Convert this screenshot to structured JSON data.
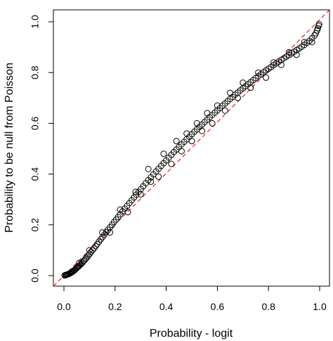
{
  "chart_data": {
    "type": "scatter",
    "title": "",
    "xlabel": "Probability - logit",
    "ylabel": "Probability to be null from Poisson",
    "xlim": [
      0,
      1
    ],
    "ylim": [
      0,
      1
    ],
    "xticks": [
      0.0,
      0.2,
      0.4,
      0.6,
      0.8,
      1.0
    ],
    "yticks": [
      0.0,
      0.2,
      0.4,
      0.6,
      0.8,
      1.0
    ],
    "xtick_labels": [
      "0.0",
      "0.2",
      "0.4",
      "0.6",
      "0.8",
      "1.0"
    ],
    "ytick_labels": [
      "0.0",
      "0.2",
      "0.4",
      "0.6",
      "0.8",
      "1.0"
    ],
    "grid": false,
    "legend": "none",
    "reference_line": {
      "from": [
        0,
        0
      ],
      "to": [
        1,
        1
      ],
      "color": "#e02020",
      "style": "dashed"
    },
    "marker_color": "#000000",
    "series": [
      {
        "points": [
          [
            0.003,
            0.001
          ],
          [
            0.006,
            0.002
          ],
          [
            0.009,
            0.003
          ],
          [
            0.012,
            0.004
          ],
          [
            0.015,
            0.005
          ],
          [
            0.018,
            0.006
          ],
          [
            0.021,
            0.008
          ],
          [
            0.024,
            0.009
          ],
          [
            0.027,
            0.011
          ],
          [
            0.03,
            0.013
          ],
          [
            0.033,
            0.015
          ],
          [
            0.036,
            0.017
          ],
          [
            0.039,
            0.02
          ],
          [
            0.042,
            0.022
          ],
          [
            0.045,
            0.025
          ],
          [
            0.048,
            0.028
          ],
          [
            0.051,
            0.031
          ],
          [
            0.054,
            0.034
          ],
          [
            0.057,
            0.036
          ],
          [
            0.06,
            0.039
          ],
          [
            0.064,
            0.043
          ],
          [
            0.068,
            0.047
          ],
          [
            0.072,
            0.051
          ],
          [
            0.076,
            0.056
          ],
          [
            0.08,
            0.06
          ],
          [
            0.085,
            0.066
          ],
          [
            0.09,
            0.072
          ],
          [
            0.095,
            0.079
          ],
          [
            0.1,
            0.085
          ],
          [
            0.106,
            0.093
          ],
          [
            0.112,
            0.101
          ],
          [
            0.118,
            0.108
          ],
          [
            0.124,
            0.116
          ],
          [
            0.13,
            0.124
          ],
          [
            0.137,
            0.134
          ],
          [
            0.144,
            0.143
          ],
          [
            0.151,
            0.152
          ],
          [
            0.158,
            0.161
          ],
          [
            0.165,
            0.171
          ],
          [
            0.172,
            0.18
          ],
          [
            0.18,
            0.19
          ],
          [
            0.188,
            0.2
          ],
          [
            0.196,
            0.211
          ],
          [
            0.204,
            0.221
          ],
          [
            0.212,
            0.231
          ],
          [
            0.22,
            0.241
          ],
          [
            0.229,
            0.253
          ],
          [
            0.238,
            0.264
          ],
          [
            0.247,
            0.275
          ],
          [
            0.256,
            0.286
          ],
          [
            0.265,
            0.297
          ],
          [
            0.274,
            0.308
          ],
          [
            0.283,
            0.319
          ],
          [
            0.292,
            0.33
          ],
          [
            0.301,
            0.341
          ],
          [
            0.31,
            0.352
          ],
          [
            0.32,
            0.364
          ],
          [
            0.33,
            0.376
          ],
          [
            0.34,
            0.387
          ],
          [
            0.35,
            0.399
          ],
          [
            0.36,
            0.41
          ],
          [
            0.37,
            0.421
          ],
          [
            0.38,
            0.432
          ],
          [
            0.39,
            0.443
          ],
          [
            0.4,
            0.454
          ],
          [
            0.41,
            0.465
          ],
          [
            0.42,
            0.476
          ],
          [
            0.43,
            0.487
          ],
          [
            0.44,
            0.497
          ],
          [
            0.45,
            0.507
          ],
          [
            0.46,
            0.517
          ],
          [
            0.47,
            0.527
          ],
          [
            0.48,
            0.537
          ],
          [
            0.49,
            0.547
          ],
          [
            0.5,
            0.557
          ],
          [
            0.51,
            0.567
          ],
          [
            0.52,
            0.576
          ],
          [
            0.53,
            0.586
          ],
          [
            0.54,
            0.595
          ],
          [
            0.55,
            0.605
          ],
          [
            0.56,
            0.614
          ],
          [
            0.57,
            0.624
          ],
          [
            0.58,
            0.633
          ],
          [
            0.59,
            0.642
          ],
          [
            0.6,
            0.651
          ],
          [
            0.61,
            0.66
          ],
          [
            0.62,
            0.669
          ],
          [
            0.63,
            0.678
          ],
          [
            0.64,
            0.687
          ],
          [
            0.65,
            0.696
          ],
          [
            0.66,
            0.704
          ],
          [
            0.67,
            0.713
          ],
          [
            0.68,
            0.721
          ],
          [
            0.69,
            0.73
          ],
          [
            0.7,
            0.738
          ],
          [
            0.71,
            0.746
          ],
          [
            0.72,
            0.754
          ],
          [
            0.73,
            0.762
          ],
          [
            0.74,
            0.77
          ],
          [
            0.75,
            0.778
          ],
          [
            0.76,
            0.786
          ],
          [
            0.77,
            0.793
          ],
          [
            0.78,
            0.801
          ],
          [
            0.79,
            0.808
          ],
          [
            0.8,
            0.815
          ],
          [
            0.81,
            0.822
          ],
          [
            0.82,
            0.829
          ],
          [
            0.83,
            0.836
          ],
          [
            0.84,
            0.843
          ],
          [
            0.85,
            0.85
          ],
          [
            0.86,
            0.856
          ],
          [
            0.87,
            0.863
          ],
          [
            0.88,
            0.869
          ],
          [
            0.89,
            0.876
          ],
          [
            0.9,
            0.882
          ],
          [
            0.91,
            0.889
          ],
          [
            0.92,
            0.895
          ],
          [
            0.93,
            0.902
          ],
          [
            0.94,
            0.909
          ],
          [
            0.95,
            0.917
          ],
          [
            0.96,
            0.925
          ],
          [
            0.97,
            0.935
          ],
          [
            0.98,
            0.946
          ],
          [
            0.985,
            0.955
          ],
          [
            0.99,
            0.966
          ],
          [
            0.993,
            0.975
          ],
          [
            0.996,
            0.984
          ],
          [
            0.998,
            0.99
          ],
          [
            0.15,
            0.17
          ],
          [
            0.18,
            0.17
          ],
          [
            0.22,
            0.26
          ],
          [
            0.25,
            0.25
          ],
          [
            0.28,
            0.33
          ],
          [
            0.3,
            0.32
          ],
          [
            0.33,
            0.42
          ],
          [
            0.34,
            0.37
          ],
          [
            0.37,
            0.39
          ],
          [
            0.39,
            0.48
          ],
          [
            0.42,
            0.44
          ],
          [
            0.44,
            0.53
          ],
          [
            0.46,
            0.49
          ],
          [
            0.48,
            0.56
          ],
          [
            0.5,
            0.53
          ],
          [
            0.52,
            0.6
          ],
          [
            0.54,
            0.57
          ],
          [
            0.56,
            0.64
          ],
          [
            0.58,
            0.6
          ],
          [
            0.6,
            0.67
          ],
          [
            0.63,
            0.65
          ],
          [
            0.65,
            0.72
          ],
          [
            0.68,
            0.7
          ],
          [
            0.7,
            0.76
          ],
          [
            0.73,
            0.74
          ],
          [
            0.76,
            0.8
          ],
          [
            0.79,
            0.78
          ],
          [
            0.82,
            0.84
          ],
          [
            0.85,
            0.83
          ],
          [
            0.88,
            0.88
          ],
          [
            0.91,
            0.87
          ],
          [
            0.94,
            0.92
          ],
          [
            0.97,
            0.92
          ],
          [
            0.06,
            0.05
          ],
          [
            0.1,
            0.1
          ]
        ]
      }
    ]
  }
}
